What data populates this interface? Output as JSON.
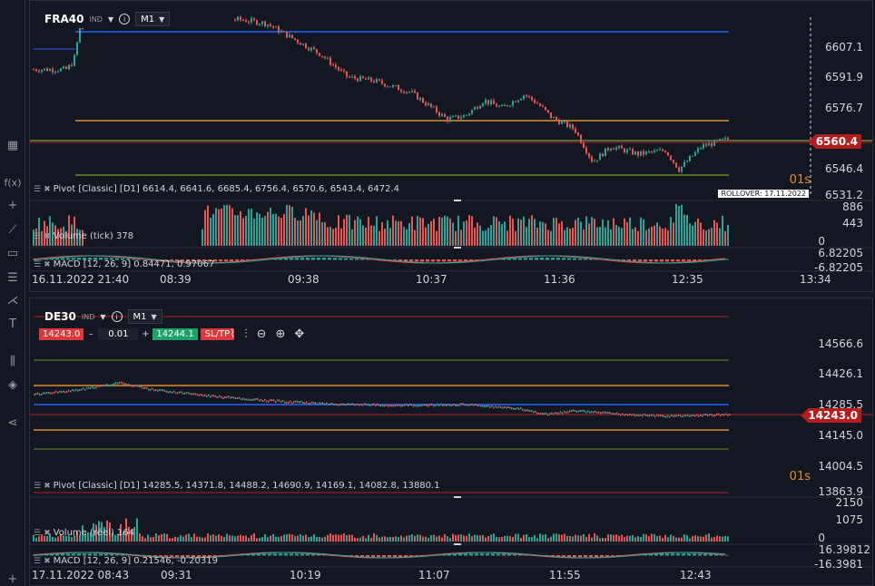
{
  "toolbar": {
    "items": [
      {
        "name": "layout-grid-icon",
        "glyph": "▦"
      },
      {
        "name": "function-icon",
        "glyph": "f(x)"
      },
      {
        "name": "crosshair-icon",
        "glyph": "+"
      },
      {
        "name": "trendline-icon",
        "glyph": "⟋"
      },
      {
        "name": "rectangle-icon",
        "glyph": "▭"
      },
      {
        "name": "fibonacci-icon",
        "glyph": "☰"
      },
      {
        "name": "pitchfork-icon",
        "glyph": "⋌"
      },
      {
        "name": "text-icon",
        "glyph": "T"
      },
      {
        "name": "indicators-icon",
        "glyph": "⫼"
      },
      {
        "name": "layers-icon",
        "glyph": "◈"
      },
      {
        "name": "share-icon",
        "glyph": "⋖"
      },
      {
        "name": "add-icon",
        "glyph": "+"
      }
    ]
  },
  "chart1": {
    "symbol": "FRA40",
    "tag": "IND",
    "timeframe": "M1",
    "info_glyph": "i",
    "caret": "▼",
    "price_labels": [
      "6607.1",
      "6591.9",
      "6576.7",
      "6560.4",
      "6546.4",
      "6531.2"
    ],
    "price_levels": [
      6607.1,
      6591.9,
      6576.7,
      6546.4,
      6531.2
    ],
    "current_price": "6560.4",
    "countdown": "01s",
    "rollover": "ROLLOVER: 17.11.2022",
    "pivot_label": "Pivot [Classic] [D1] 6614.4, 6641.6, 6685.4, 6756.4, 6570.6, 6543.4, 6472.4",
    "volume_label": "Volume (tick) 378",
    "volume_scale": [
      "886",
      "443",
      "0"
    ],
    "macd_label": "MACD [12, 26, 9] 0.84471, 0.97067",
    "macd_scale": [
      "6.82205",
      "-6.82205"
    ],
    "time_labels": [
      "16.11.2022 21:40",
      "08:39",
      "09:38",
      "10:37",
      "11:36",
      "12:35",
      "13:34"
    ],
    "colors": {
      "pivot_p": "#2962ff",
      "pivot_r": "#e08e2a",
      "pivot_s": "#8bc34a",
      "up": "#26a69a",
      "down": "#ef5350"
    }
  },
  "chart2": {
    "symbol": "DE30",
    "tag": "IND",
    "timeframe": "M1",
    "info_glyph": "i",
    "caret": "▼",
    "sell_price": "14243.0",
    "qty_minus": "–",
    "qty": "0.01",
    "qty_plus": "+",
    "buy_price": "14244.1",
    "sltp_label": "SL/TP",
    "tool_icons": [
      {
        "name": "line-chart-icon",
        "glyph": "⌇"
      },
      {
        "name": "candles-icon",
        "glyph": "⫶"
      },
      {
        "name": "zoom-out-icon",
        "glyph": "⊖"
      },
      {
        "name": "zoom-in-icon",
        "glyph": "⊕"
      },
      {
        "name": "move-icon",
        "glyph": "✥"
      }
    ],
    "price_labels": [
      "14566.6",
      "14426.1",
      "14285.5",
      "14243.0",
      "14145.0",
      "14004.5",
      "13863.9"
    ],
    "price_levels": [
      14566.6,
      14426.1,
      14285.5,
      14145.0,
      14004.5,
      13863.9
    ],
    "current_price": "14243.0",
    "countdown": "01s",
    "pivot_label": "Pivot [Classic] [D1] 14285.5, 14371.8, 14488.2, 14690.9, 14169.1, 14082.8, 13880.1",
    "volume_label": "Volume (réel) 164",
    "volume_scale": [
      "2150",
      "1075",
      "0"
    ],
    "macd_label": "MACD [12, 26, 9] 0.21546, -0.20319",
    "macd_scale": [
      "16.39812",
      "-16.3981"
    ],
    "time_labels": [
      "17.11.2022 08:43",
      "09:31",
      "10:19",
      "11:07",
      "11:55",
      "12:43"
    ]
  }
}
